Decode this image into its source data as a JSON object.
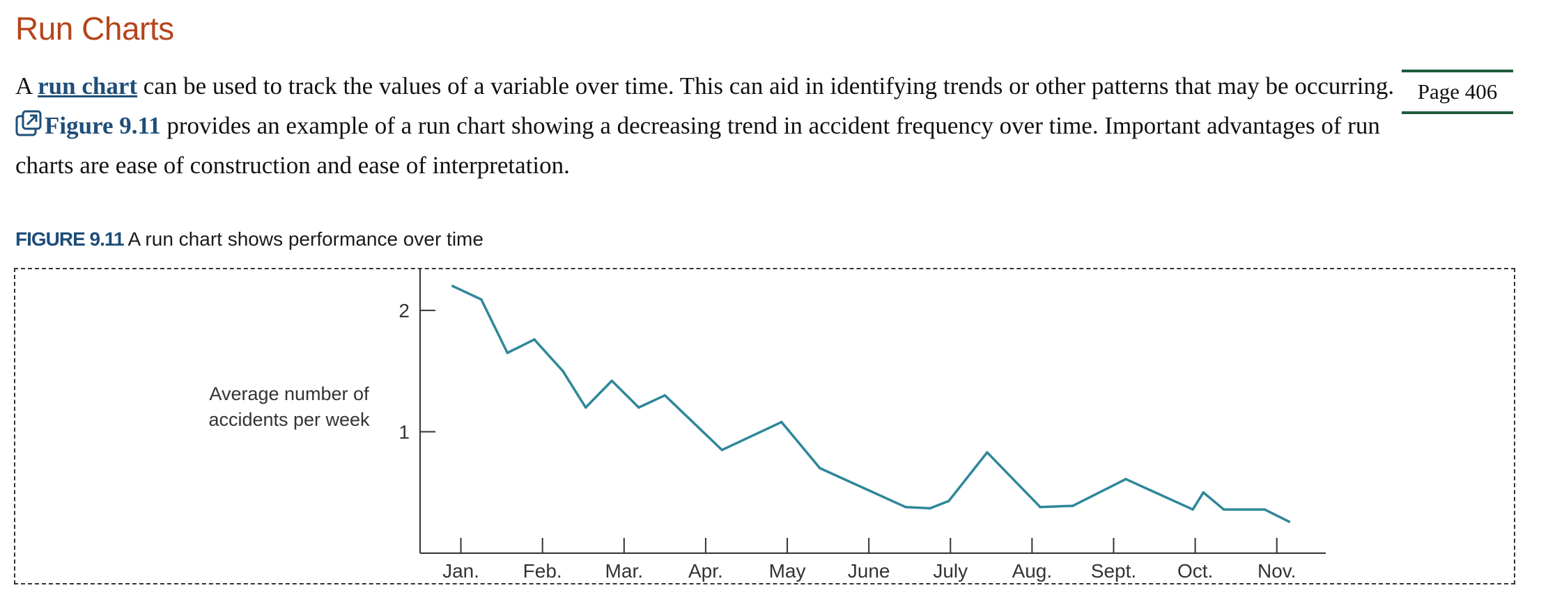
{
  "section": {
    "title": "Run Charts"
  },
  "paragraph": {
    "p1": "A ",
    "term": "run chart",
    "p2": " can be used to track the values of a variable over time. This can aid in identifying trends or other patterns that may be occurring. ",
    "figure_ref": "Figure 9.11",
    "p3": " provides an example of a run chart showing a decreasing trend in accident frequency over time. Important advantages of run charts are ease of construction and ease of interpretation."
  },
  "page_marker": "Page 406",
  "figure": {
    "label": "FIGURE 9.11",
    "caption": "A run chart shows performance over time"
  },
  "icons": {
    "figure_link": "external-link-icon"
  },
  "colors": {
    "heading": "#b5451b",
    "link": "#1f4e79",
    "line": "#2e8799",
    "page_rule": "#1f5b3a"
  },
  "chart_data": {
    "type": "line",
    "title": "",
    "xlabel": "",
    "ylabel": "Average number of\naccidents per week",
    "categories": [
      "Jan.",
      "Feb.",
      "Mar.",
      "Apr.",
      "May",
      "June",
      "July",
      "Aug.",
      "Sept.",
      "Oct.",
      "Nov."
    ],
    "yticks": [
      1,
      2
    ],
    "ylim": [
      0,
      2.35
    ],
    "xlim": [
      0.5,
      11.6
    ],
    "grid": false,
    "series": [
      {
        "name": "",
        "x": [
          0.9,
          1.25,
          1.57,
          1.9,
          2.25,
          2.53,
          2.85,
          3.18,
          3.5,
          4.2,
          4.93,
          5.4,
          6.45,
          6.75,
          6.98,
          7.45,
          8.1,
          8.5,
          9.15,
          9.97,
          10.1,
          10.35,
          10.85,
          11.15
        ],
        "values": [
          2.2,
          2.09,
          1.65,
          1.76,
          1.5,
          1.2,
          1.42,
          1.2,
          1.3,
          0.85,
          1.08,
          0.7,
          0.38,
          0.37,
          0.43,
          0.83,
          0.38,
          0.39,
          0.61,
          0.36,
          0.5,
          0.36,
          0.36,
          0.26
        ]
      }
    ]
  }
}
